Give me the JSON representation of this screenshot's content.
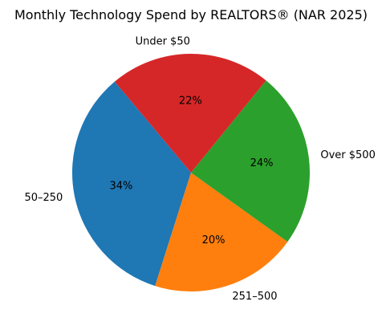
{
  "chart_data": {
    "type": "pie",
    "title": "Monthly Technology Spend by REALTORS® (NAR 2025)",
    "categories": [
      "50–250",
      "251–500",
      "Over $500",
      "Under $50"
    ],
    "values": [
      34,
      20,
      24,
      22
    ],
    "value_labels": [
      "34%",
      "20%",
      "24%",
      "22%"
    ],
    "colors": [
      "#1f77b4",
      "#ff7f0e",
      "#2ca02c",
      "#d62728"
    ],
    "start_angle_deg": 130,
    "direction": "counterclockwise",
    "legend": "none"
  }
}
